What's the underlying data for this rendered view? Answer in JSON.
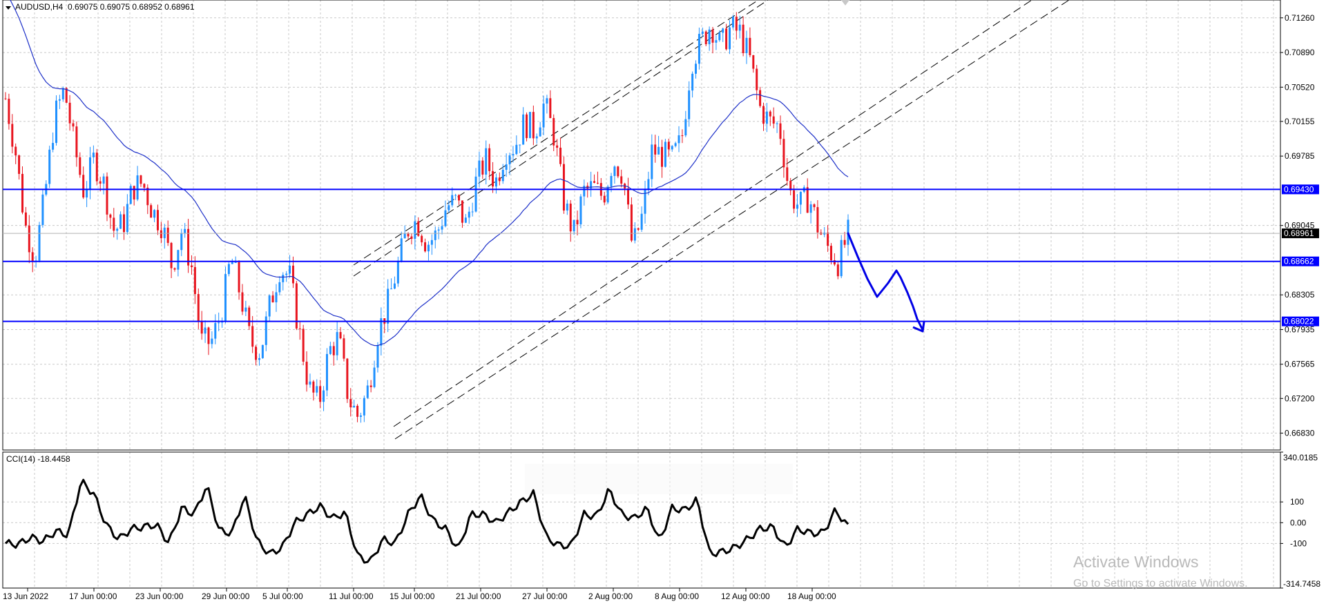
{
  "header": {
    "symbol_timeframe": "AUDUSD,H4",
    "ohlc": "0.69075 0.69075 0.68952 0.68961"
  },
  "price_axis": {
    "ticks": [
      "0.71260",
      "0.70890",
      "0.70520",
      "0.70155",
      "0.69785",
      "0.69045",
      "0.68305",
      "0.67935",
      "0.67565",
      "0.67200",
      "0.66830"
    ],
    "highlight_labels": [
      "0.69430",
      "0.68662",
      "0.68022"
    ],
    "current_price": "0.68961"
  },
  "time_axis": {
    "ticks": [
      "13 Jun 2022",
      "17 Jun 00:00",
      "23 Jun 00:00",
      "29 Jun 00:00",
      "5 Jul 00:00",
      "11 Jul 00:00",
      "15 Jul 00:00",
      "21 Jul 00:00",
      "27 Jul 00:00",
      "2 Aug 00:00",
      "8 Aug 00:00",
      "12 Aug 00:00",
      "18 Aug 00:00"
    ]
  },
  "indicator": {
    "label": "CCI(14) -18.4458",
    "ticks": [
      "340.0185",
      "100",
      "0.00",
      "-100",
      "-314.7458"
    ]
  },
  "watermark": {
    "title": "Activate Windows",
    "subtitle": "Go to Settings to activate Windows."
  },
  "colors": {
    "bull": "#1e90ff",
    "bear": "#e8141e",
    "level_line": "#0000ff",
    "ma": "#1c2fc8",
    "grid": "#c8c8c8"
  },
  "chart_data": {
    "type": "candlestick",
    "symbol": "AUDUSD",
    "timeframe": "H4",
    "ylim": [
      0.6665,
      0.7145
    ],
    "levels": [
      0.6943,
      0.68662,
      0.68022
    ],
    "current_price": 0.68961,
    "close_path": [
      0.704,
      0.6985,
      0.6905,
      0.687,
      0.6935,
      0.702,
      0.705,
      0.699,
      0.694,
      0.6975,
      0.695,
      0.69,
      0.6905,
      0.6945,
      0.695,
      0.692,
      0.6905,
      0.686,
      0.69,
      0.686,
      0.678,
      0.678,
      0.681,
      0.687,
      0.683,
      0.678,
      0.677,
      0.682,
      0.686,
      0.685,
      0.679,
      0.673,
      0.6715,
      0.677,
      0.6785,
      0.672,
      0.67,
      0.673,
      0.679,
      0.682,
      0.686,
      0.69,
      0.691,
      0.6885,
      0.6895,
      0.6925,
      0.693,
      0.6905,
      0.695,
      0.6975,
      0.695,
      0.6985,
      0.699,
      0.7015,
      0.7005,
      0.7035,
      0.7,
      0.693,
      0.6895,
      0.694,
      0.6945,
      0.6935,
      0.6975,
      0.696,
      0.688,
      0.6915,
      0.6985,
      0.698,
      0.6975,
      0.6995,
      0.708,
      0.71,
      0.712,
      0.7095,
      0.7115,
      0.711,
      0.708,
      0.703,
      0.7015,
      0.701,
      0.694,
      0.6925,
      0.6935,
      0.69,
      0.688,
      0.6865,
      0.6895
    ],
    "cci_ylim": [
      -314.7458,
      340.0185
    ],
    "cci_path": [
      -100,
      -105,
      -70,
      -90,
      -40,
      -60,
      200,
      140,
      -10,
      -80,
      -30,
      -20,
      -10,
      -100,
      70,
      40,
      180,
      -40,
      -50,
      130,
      -90,
      -150,
      -120,
      0,
      40,
      80,
      20,
      50,
      -160,
      -190,
      -80,
      -100,
      40,
      130,
      10,
      -30,
      -130,
      40,
      40,
      0,
      50,
      100,
      140,
      -70,
      -110,
      -110,
      40,
      30,
      160,
      40,
      20,
      70,
      -90,
      70,
      60,
      110,
      -150,
      -140,
      -120,
      -80,
      -30,
      -20,
      -120,
      -30,
      -50,
      -50,
      60,
      -20
    ]
  }
}
